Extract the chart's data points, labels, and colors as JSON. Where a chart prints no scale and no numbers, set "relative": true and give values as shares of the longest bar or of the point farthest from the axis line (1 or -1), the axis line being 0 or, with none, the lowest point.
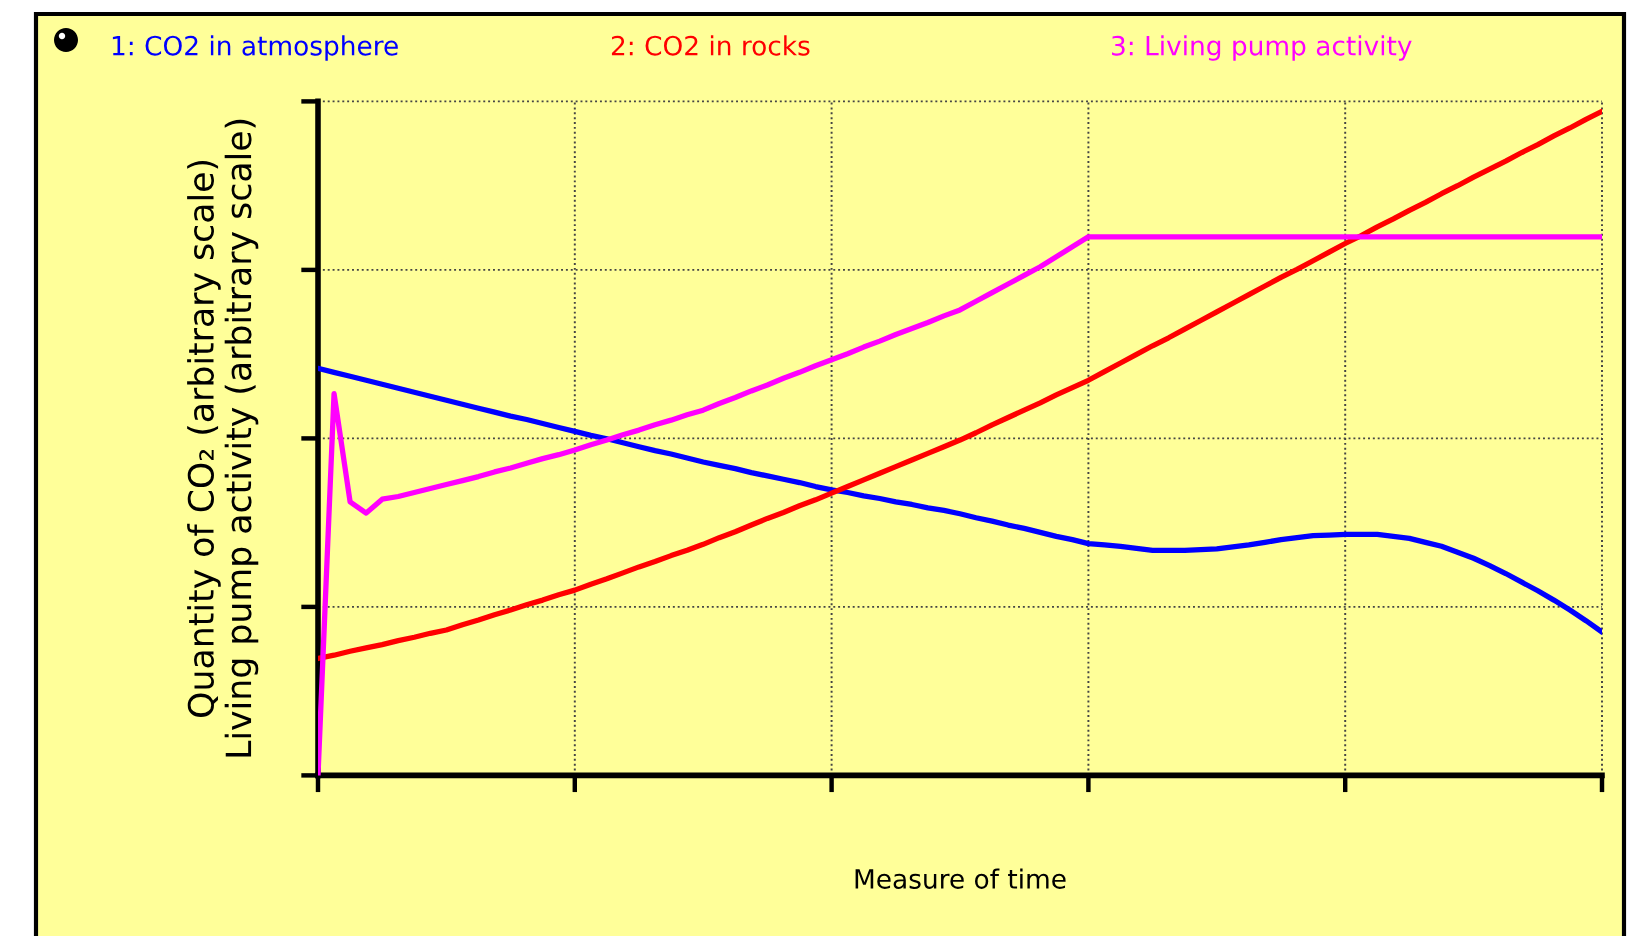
{
  "chart_data": {
    "type": "line",
    "relative": true,
    "categories": [
      null,
      null,
      null,
      null,
      null,
      null,
      null,
      null,
      null,
      null,
      null,
      null,
      null,
      null,
      null,
      null,
      null,
      null,
      null,
      null,
      null,
      null,
      null,
      null,
      null,
      null,
      null,
      null,
      null,
      null,
      null,
      null,
      null,
      null,
      null,
      null,
      null,
      null,
      null,
      null,
      null,
      null,
      null,
      null,
      null,
      null,
      null,
      null,
      null,
      null,
      null,
      null,
      null,
      null,
      null,
      null,
      null,
      null,
      null,
      null,
      null,
      null,
      null,
      null,
      null,
      null,
      null,
      null,
      null,
      null,
      null,
      null,
      null,
      null,
      null,
      null,
      null,
      null,
      null,
      null,
      null
    ],
    "xlabel": "Measure of time",
    "ylabel": "Quantity of CO₂ (arbitrary scale)\nLiving pump activity (arbitrary scale)",
    "grid": true,
    "series": [
      {
        "name": "1: CO2 in atmosphere",
        "color": "#0000ff",
        "values": [
          0.613,
          0.607,
          0.601,
          0.595,
          0.589,
          0.583,
          0.577,
          0.571,
          0.565,
          0.559,
          0.553,
          0.547,
          0.541,
          0.536,
          0.53,
          0.524,
          0.518,
          0.512,
          0.507,
          0.501,
          0.495,
          0.489,
          0.484,
          0.478,
          0.472,
          0.467,
          0.462,
          0.456,
          0.451,
          0.446,
          0.441,
          0.435,
          0.43,
          0.426,
          0.421,
          0.417,
          0.412,
          0.408,
          0.403,
          0.399,
          0.394,
          0.388,
          0.383,
          0.377,
          0.372,
          0.366,
          0.36,
          0.355,
          0.349,
          0.347,
          0.345,
          0.342,
          0.339,
          0.339,
          0.339,
          0.34,
          0.341,
          0.344,
          0.347,
          0.351,
          0.355,
          0.358,
          0.361,
          0.362,
          0.363,
          0.363,
          0.363,
          0.36,
          0.357,
          0.351,
          0.345,
          0.336,
          0.327,
          0.316,
          0.304,
          0.291,
          0.278,
          0.264,
          0.249,
          0.233,
          0.216
        ]
      },
      {
        "name": "2: CO2 in rocks",
        "color": "#ff0000",
        "values": [
          0.176,
          0.181,
          0.187,
          0.192,
          0.197,
          0.203,
          0.208,
          0.214,
          0.219,
          0.227,
          0.234,
          0.242,
          0.249,
          0.257,
          0.264,
          0.272,
          0.279,
          0.288,
          0.296,
          0.305,
          0.314,
          0.322,
          0.331,
          0.339,
          0.348,
          0.358,
          0.367,
          0.377,
          0.387,
          0.396,
          0.406,
          0.415,
          0.425,
          0.435,
          0.445,
          0.455,
          0.465,
          0.475,
          0.485,
          0.495,
          0.505,
          0.516,
          0.528,
          0.539,
          0.55,
          0.561,
          0.573,
          0.584,
          0.595,
          0.608,
          0.621,
          0.634,
          0.647,
          0.659,
          0.672,
          0.685,
          0.698,
          0.711,
          0.724,
          0.737,
          0.75,
          0.762,
          0.775,
          0.788,
          0.801,
          0.813,
          0.826,
          0.838,
          0.851,
          0.863,
          0.876,
          0.888,
          0.901,
          0.913,
          0.925,
          0.938,
          0.95,
          0.963,
          0.975,
          0.988,
          1.0
        ]
      },
      {
        "name": "3: Living pump activity",
        "color": "#ff00ff",
        "values": [
          0,
          0.575,
          0.412,
          0.395,
          0.416,
          0.42,
          0.426,
          0.432,
          0.438,
          0.444,
          0.45,
          0.457,
          0.463,
          0.47,
          0.477,
          0.483,
          0.49,
          0.498,
          0.505,
          0.513,
          0.52,
          0.528,
          0.535,
          0.543,
          0.55,
          0.56,
          0.569,
          0.579,
          0.588,
          0.598,
          0.607,
          0.617,
          0.626,
          0.635,
          0.645,
          0.654,
          0.664,
          0.673,
          0.682,
          0.692,
          0.701,
          0.714,
          0.727,
          0.74,
          0.753,
          0.766,
          0.781,
          0.796,
          0.811,
          0.811,
          0.811,
          0.811,
          0.811,
          0.811,
          0.811,
          0.811,
          0.811,
          0.811,
          0.811,
          0.811,
          0.811,
          0.811,
          0.811,
          0.811,
          0.811,
          0.811,
          0.811,
          0.811,
          0.811,
          0.811,
          0.811,
          0.811,
          0.811,
          0.811,
          0.811,
          0.811,
          0.811,
          0.811,
          0.811,
          0.811,
          0.811
        ]
      }
    ]
  }
}
